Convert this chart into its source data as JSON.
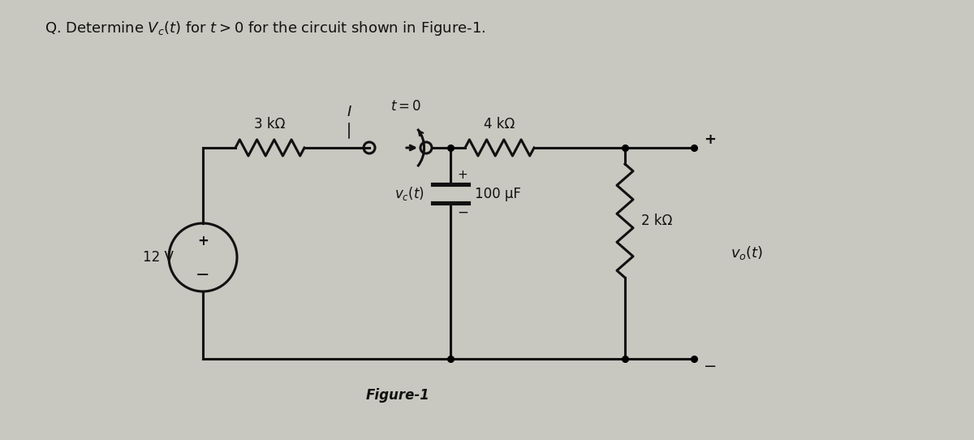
{
  "title": "Q. Determine $V_c(t)$ for $t > 0$ for the circuit shown in Figure-1.",
  "figure_label": "Figure-1",
  "bg_color": "#c8c8c0",
  "circuit_color": "#111111",
  "title_fontsize": 13,
  "label_fontsize": 12,
  "small_fontsize": 10,
  "source_voltage": "12 V",
  "r1_label": "3 kΩ",
  "r2_label": "4 kΩ",
  "r3_label": "2 kΩ",
  "cap_label": "100 μF",
  "switch_label": "$t = 0$",
  "vc_label": "$v_c(t)$",
  "vo_label": "$v_o(t)$",
  "current_label": "I",
  "plus_label": "+",
  "minus_label": "−"
}
